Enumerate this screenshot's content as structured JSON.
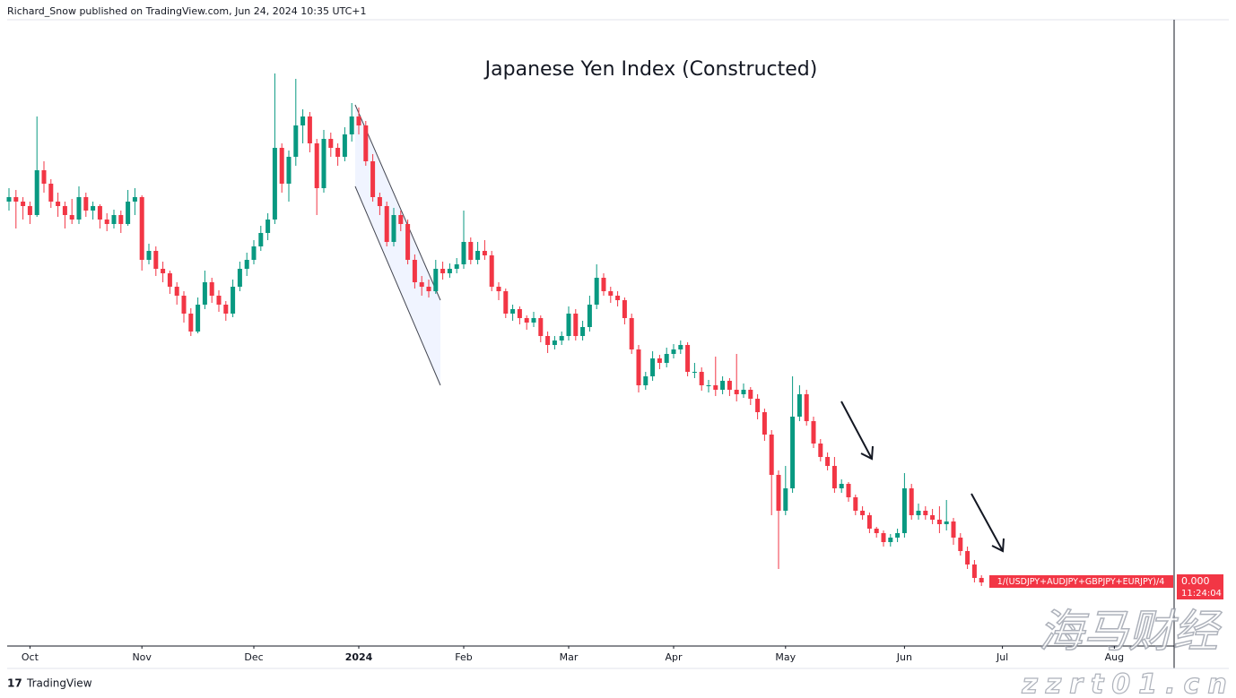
{
  "header": "Richard_Snow published on TradingView.com, Jun 24, 2024 10:35 UTC+1",
  "footer": "TradingView",
  "watermark": {
    "name": "海马财经",
    "url": "zzrt01.cn"
  },
  "chart_data": {
    "type": "candlestick",
    "title": "Japanese Yen Index (Constructed)",
    "series_label": "1/(USDJPY+AUDJPY+GBPJPY+EURJPY)/4",
    "price_label": "0.000",
    "countdown": "11:24:04",
    "up_color": "#089981",
    "down_color": "#f23645",
    "ylim": [
      0,
      700
    ],
    "xticks": [
      {
        "value": 3,
        "label": "Oct"
      },
      {
        "value": 19,
        "label": "Nov"
      },
      {
        "value": 35,
        "label": "Dec"
      },
      {
        "value": 50,
        "label": "2024"
      },
      {
        "value": 65,
        "label": "Feb"
      },
      {
        "value": 80,
        "label": "Mar"
      },
      {
        "value": 95,
        "label": "Apr"
      },
      {
        "value": 111,
        "label": "May"
      },
      {
        "value": 128,
        "label": "Jun"
      },
      {
        "value": 142,
        "label": "Jul"
      },
      {
        "value": 158,
        "label": "Aug"
      }
    ],
    "ohlc": [
      [
        495,
        510,
        485,
        500
      ],
      [
        500,
        508,
        465,
        495
      ],
      [
        495,
        500,
        475,
        490
      ],
      [
        490,
        495,
        470,
        480
      ],
      [
        480,
        590,
        478,
        530
      ],
      [
        530,
        540,
        505,
        515
      ],
      [
        515,
        520,
        488,
        495
      ],
      [
        495,
        505,
        478,
        490
      ],
      [
        490,
        495,
        465,
        480
      ],
      [
        480,
        498,
        470,
        475
      ],
      [
        475,
        512,
        470,
        500
      ],
      [
        500,
        505,
        478,
        485
      ],
      [
        485,
        495,
        475,
        490
      ],
      [
        490,
        492,
        465,
        475
      ],
      [
        475,
        482,
        462,
        470
      ],
      [
        470,
        486,
        465,
        480
      ],
      [
        480,
        485,
        460,
        470
      ],
      [
        470,
        508,
        468,
        495
      ],
      [
        495,
        510,
        480,
        500
      ],
      [
        500,
        502,
        418,
        430
      ],
      [
        430,
        448,
        425,
        440
      ],
      [
        440,
        445,
        412,
        420
      ],
      [
        420,
        428,
        405,
        415
      ],
      [
        415,
        418,
        392,
        400
      ],
      [
        400,
        405,
        380,
        390
      ],
      [
        390,
        395,
        360,
        370
      ],
      [
        370,
        376,
        345,
        350
      ],
      [
        350,
        388,
        348,
        380
      ],
      [
        380,
        418,
        375,
        405
      ],
      [
        405,
        410,
        382,
        390
      ],
      [
        390,
        396,
        372,
        380
      ],
      [
        380,
        384,
        362,
        370
      ],
      [
        370,
        408,
        366,
        400
      ],
      [
        400,
        428,
        395,
        420
      ],
      [
        420,
        438,
        412,
        430
      ],
      [
        430,
        452,
        425,
        445
      ],
      [
        445,
        468,
        440,
        460
      ],
      [
        460,
        482,
        452,
        475
      ],
      [
        475,
        638,
        470,
        555
      ],
      [
        555,
        560,
        505,
        515
      ],
      [
        515,
        552,
        495,
        545
      ],
      [
        545,
        632,
        535,
        580
      ],
      [
        580,
        598,
        560,
        590
      ],
      [
        590,
        595,
        550,
        560
      ],
      [
        560,
        565,
        480,
        510
      ],
      [
        510,
        575,
        505,
        565
      ],
      [
        565,
        572,
        545,
        555
      ],
      [
        555,
        560,
        535,
        545
      ],
      [
        545,
        578,
        540,
        570
      ],
      [
        570,
        605,
        562,
        590
      ],
      [
        590,
        600,
        570,
        580
      ],
      [
        580,
        585,
        535,
        540
      ],
      [
        540,
        548,
        495,
        500
      ],
      [
        500,
        505,
        480,
        490
      ],
      [
        490,
        495,
        445,
        450
      ],
      [
        450,
        488,
        445,
        480
      ],
      [
        480,
        485,
        462,
        470
      ],
      [
        470,
        475,
        425,
        430
      ],
      [
        430,
        436,
        398,
        405
      ],
      [
        405,
        412,
        390,
        400
      ],
      [
        400,
        408,
        388,
        395
      ],
      [
        395,
        430,
        392,
        420
      ],
      [
        420,
        428,
        408,
        415
      ],
      [
        415,
        426,
        410,
        420
      ],
      [
        420,
        432,
        415,
        425
      ],
      [
        425,
        485,
        420,
        450
      ],
      [
        450,
        455,
        425,
        430
      ],
      [
        430,
        450,
        425,
        440
      ],
      [
        440,
        452,
        430,
        435
      ],
      [
        435,
        440,
        395,
        400
      ],
      [
        400,
        405,
        385,
        395
      ],
      [
        395,
        398,
        365,
        370
      ],
      [
        370,
        380,
        362,
        375
      ],
      [
        375,
        378,
        358,
        365
      ],
      [
        365,
        368,
        352,
        360
      ],
      [
        360,
        372,
        355,
        365
      ],
      [
        365,
        368,
        338,
        345
      ],
      [
        345,
        350,
        326,
        335
      ],
      [
        335,
        345,
        330,
        340
      ],
      [
        340,
        350,
        335,
        345
      ],
      [
        345,
        378,
        340,
        370
      ],
      [
        370,
        375,
        340,
        345
      ],
      [
        345,
        362,
        340,
        355
      ],
      [
        355,
        390,
        350,
        380
      ],
      [
        380,
        425,
        375,
        410
      ],
      [
        410,
        415,
        390,
        395
      ],
      [
        395,
        400,
        382,
        390
      ],
      [
        390,
        395,
        378,
        385
      ],
      [
        385,
        388,
        358,
        365
      ],
      [
        365,
        370,
        325,
        330
      ],
      [
        330,
        335,
        282,
        290
      ],
      [
        290,
        305,
        285,
        300
      ],
      [
        300,
        328,
        295,
        320
      ],
      [
        320,
        324,
        308,
        315
      ],
      [
        315,
        332,
        310,
        325
      ],
      [
        325,
        336,
        320,
        330
      ],
      [
        330,
        340,
        325,
        335
      ],
      [
        335,
        338,
        300,
        305
      ],
      [
        305,
        315,
        298,
        305
      ],
      [
        305,
        310,
        284,
        290
      ],
      [
        290,
        296,
        282,
        290
      ],
      [
        290,
        322,
        278,
        285
      ],
      [
        285,
        300,
        280,
        295
      ],
      [
        295,
        298,
        278,
        285
      ],
      [
        285,
        325,
        272,
        280
      ],
      [
        280,
        292,
        276,
        285
      ],
      [
        285,
        288,
        268,
        275
      ],
      [
        275,
        280,
        252,
        260
      ],
      [
        260,
        264,
        228,
        235
      ],
      [
        235,
        240,
        145,
        190
      ],
      [
        190,
        195,
        85,
        150
      ],
      [
        150,
        200,
        145,
        175
      ],
      [
        175,
        300,
        170,
        255
      ],
      [
        255,
        290,
        250,
        280
      ],
      [
        280,
        285,
        245,
        250
      ],
      [
        250,
        255,
        220,
        225
      ],
      [
        225,
        230,
        205,
        210
      ],
      [
        210,
        215,
        195,
        200
      ],
      [
        200,
        210,
        170,
        175
      ],
      [
        175,
        185,
        170,
        180
      ],
      [
        180,
        182,
        160,
        165
      ],
      [
        165,
        168,
        145,
        150
      ],
      [
        150,
        155,
        140,
        145
      ],
      [
        145,
        148,
        125,
        130
      ],
      [
        130,
        132,
        120,
        125
      ],
      [
        125,
        128,
        110,
        115
      ],
      [
        115,
        124,
        110,
        120
      ],
      [
        120,
        130,
        115,
        125
      ],
      [
        125,
        192,
        120,
        175
      ],
      [
        175,
        180,
        140,
        145
      ],
      [
        145,
        158,
        140,
        150
      ],
      [
        150,
        155,
        140,
        145
      ],
      [
        145,
        152,
        135,
        140
      ],
      [
        140,
        155,
        125,
        135
      ],
      [
        135,
        162,
        128,
        138
      ],
      [
        138,
        142,
        112,
        120
      ],
      [
        120,
        125,
        100,
        105
      ],
      [
        105,
        110,
        85,
        90
      ],
      [
        90,
        95,
        70,
        75
      ],
      [
        75,
        78,
        66,
        70
      ]
    ]
  }
}
